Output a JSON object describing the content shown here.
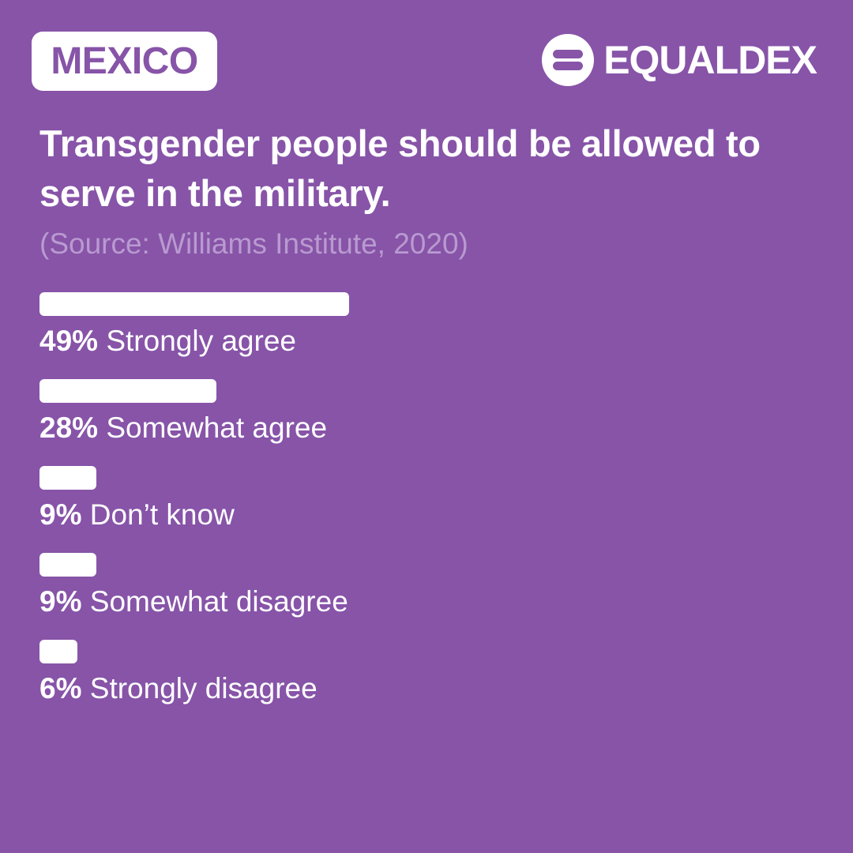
{
  "badge": {
    "country": "MEXICO"
  },
  "brand": {
    "name": "EQUALDEX",
    "logo_icon": "equaldex-logo-icon"
  },
  "colors": {
    "background": "#8754A8",
    "bar": "#FFFFFF",
    "source_text": "#B99AD0"
  },
  "chart_data": {
    "type": "bar",
    "orientation": "horizontal",
    "title": "Transgender people should be allowed to serve in the military.",
    "subtitle": "(Source: Williams Institute, 2020)",
    "categories": [
      "Strongly agree",
      "Somewhat agree",
      "Don’t know",
      "Somewhat disagree",
      "Strongly disagree"
    ],
    "values": [
      49,
      28,
      9,
      9,
      6
    ],
    "value_labels": [
      "49%",
      "28%",
      "9%",
      "9%",
      "6%"
    ],
    "value_unit": "%",
    "xlim": [
      0,
      100
    ],
    "grid": false,
    "legend": "none"
  }
}
